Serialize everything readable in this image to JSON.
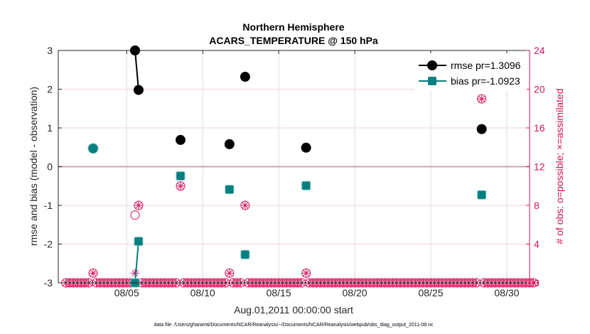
{
  "chart_data": {
    "type": "scatter",
    "title": "Northern Hemisphere",
    "subtitle": "ACARS_TEMPERATURE @ 150 hPa",
    "xlabel": "Aug.01,2011 00:00:00 start",
    "ylabel": "rmse and bias (model - observation)",
    "ylabel_right": "# of obs: o=possible; ×=assimilated",
    "footer": "data file: /Users/gharamti/Documents/NCAR/Reanalysis/~/Documents/NCAR/Reanalysis/webpub/obs_diag_output_2011-08.nc",
    "x_units": "days since Aug.01,2011 00:00",
    "xlim": [
      -0.5,
      30.5
    ],
    "ylim": [
      -3,
      3
    ],
    "ylim_right": [
      0,
      24
    ],
    "x_ticks": [
      {
        "x": 4,
        "label": "08/05"
      },
      {
        "x": 9,
        "label": "08/10"
      },
      {
        "x": 14,
        "label": "08/15"
      },
      {
        "x": 19,
        "label": "08/20"
      },
      {
        "x": 24,
        "label": "08/25"
      },
      {
        "x": 29,
        "label": "08/30"
      }
    ],
    "y_ticks": [
      {
        "y": -3,
        "label": "-3"
      },
      {
        "y": -2,
        "label": "-2"
      },
      {
        "y": -1,
        "label": "-1"
      },
      {
        "y": 0,
        "label": "0"
      },
      {
        "y": 1,
        "label": "1"
      },
      {
        "y": 2,
        "label": "2"
      },
      {
        "y": 3,
        "label": "3"
      }
    ],
    "y_ticks_right": [
      {
        "y": 0,
        "label": "0"
      },
      {
        "y": 4,
        "label": "4"
      },
      {
        "y": 8,
        "label": "8"
      },
      {
        "y": 12,
        "label": "12"
      },
      {
        "y": 16,
        "label": "16"
      },
      {
        "y": 20,
        "label": "20"
      },
      {
        "y": 24,
        "label": "24"
      }
    ],
    "legend_placement": "top-right",
    "series": [
      {
        "name": "rmse",
        "legend": "rmse pr=1.3096",
        "color": "#000000",
        "marker": "circle",
        "x": [
          1.79,
          4.55,
          4.78,
          7.54,
          10.76,
          11.79,
          15.8,
          27.35
        ],
        "y": [
          0.47,
          3.0,
          1.98,
          0.69,
          0.58,
          2.32,
          0.49,
          0.97
        ]
      },
      {
        "name": "bias",
        "legend": "bias pr=-1.0923",
        "color": "#008080",
        "marker": "square",
        "x": [
          1.79,
          4.55,
          4.78,
          7.54,
          10.76,
          11.79,
          15.8,
          27.35
        ],
        "y": [
          0.47,
          -3.0,
          -1.93,
          -0.24,
          -0.59,
          -2.27,
          -0.49,
          -0.73
        ]
      }
    ],
    "obs_counts": {
      "color": "#d6125c",
      "x": [
        1.79,
        4.55,
        4.78,
        7.54,
        10.76,
        11.79,
        15.8,
        27.35
      ],
      "possible": [
        1,
        7,
        8,
        10,
        1,
        8,
        1,
        19
      ],
      "assimilated": [
        1,
        1,
        8,
        10,
        1,
        8,
        1,
        19
      ],
      "zero_elsewhere_step_days": 0.25
    }
  }
}
